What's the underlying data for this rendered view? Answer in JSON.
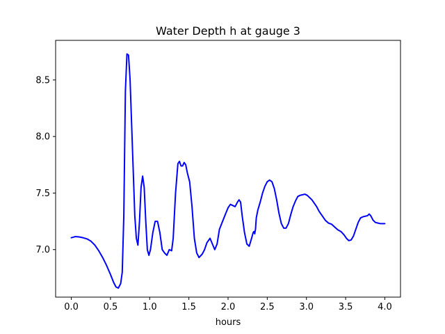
{
  "chart_data": {
    "type": "line",
    "title": "Water Depth h at gauge 3",
    "xlabel": "hours",
    "ylabel": "",
    "xlim": [
      -0.2,
      4.2
    ],
    "ylim": [
      6.58,
      8.85
    ],
    "x_ticks": [
      0.0,
      0.5,
      1.0,
      1.5,
      2.0,
      2.5,
      3.0,
      3.5,
      4.0
    ],
    "x_tick_labels": [
      "0.0",
      "0.5",
      "1.0",
      "1.5",
      "2.0",
      "2.5",
      "3.0",
      "3.5",
      "4.0"
    ],
    "y_ticks": [
      7.0,
      7.5,
      8.0,
      8.5
    ],
    "y_tick_labels": [
      "7.0",
      "7.5",
      "8.0",
      "8.5"
    ],
    "grid": false,
    "series": [
      {
        "color": "#0000ff",
        "points": [
          [
            0.0,
            7.105
          ],
          [
            0.05,
            7.115
          ],
          [
            0.1,
            7.112
          ],
          [
            0.15,
            7.105
          ],
          [
            0.2,
            7.095
          ],
          [
            0.25,
            7.075
          ],
          [
            0.3,
            7.04
          ],
          [
            0.35,
            6.99
          ],
          [
            0.4,
            6.93
          ],
          [
            0.45,
            6.86
          ],
          [
            0.5,
            6.78
          ],
          [
            0.54,
            6.71
          ],
          [
            0.57,
            6.67
          ],
          [
            0.6,
            6.66
          ],
          [
            0.63,
            6.7
          ],
          [
            0.65,
            6.8
          ],
          [
            0.67,
            7.3
          ],
          [
            0.69,
            8.4
          ],
          [
            0.71,
            8.73
          ],
          [
            0.73,
            8.72
          ],
          [
            0.75,
            8.5
          ],
          [
            0.77,
            8.1
          ],
          [
            0.79,
            7.7
          ],
          [
            0.81,
            7.3
          ],
          [
            0.83,
            7.1
          ],
          [
            0.85,
            7.04
          ],
          [
            0.87,
            7.25
          ],
          [
            0.89,
            7.55
          ],
          [
            0.91,
            7.65
          ],
          [
            0.93,
            7.55
          ],
          [
            0.95,
            7.25
          ],
          [
            0.97,
            7.0
          ],
          [
            0.99,
            6.95
          ],
          [
            1.01,
            7.0
          ],
          [
            1.04,
            7.15
          ],
          [
            1.07,
            7.25
          ],
          [
            1.1,
            7.25
          ],
          [
            1.13,
            7.15
          ],
          [
            1.16,
            7.0
          ],
          [
            1.19,
            6.97
          ],
          [
            1.22,
            6.95
          ],
          [
            1.25,
            7.0
          ],
          [
            1.28,
            6.99
          ],
          [
            1.3,
            7.1
          ],
          [
            1.33,
            7.5
          ],
          [
            1.36,
            7.76
          ],
          [
            1.38,
            7.78
          ],
          [
            1.4,
            7.74
          ],
          [
            1.42,
            7.74
          ],
          [
            1.44,
            7.77
          ],
          [
            1.46,
            7.75
          ],
          [
            1.48,
            7.68
          ],
          [
            1.51,
            7.6
          ],
          [
            1.54,
            7.38
          ],
          [
            1.57,
            7.1
          ],
          [
            1.6,
            6.97
          ],
          [
            1.63,
            6.93
          ],
          [
            1.67,
            6.96
          ],
          [
            1.7,
            7.0
          ],
          [
            1.73,
            7.06
          ],
          [
            1.77,
            7.1
          ],
          [
            1.8,
            7.05
          ],
          [
            1.83,
            7.0
          ],
          [
            1.86,
            7.05
          ],
          [
            1.89,
            7.18
          ],
          [
            1.93,
            7.25
          ],
          [
            1.97,
            7.32
          ],
          [
            2.0,
            7.37
          ],
          [
            2.03,
            7.4
          ],
          [
            2.06,
            7.39
          ],
          [
            2.09,
            7.38
          ],
          [
            2.12,
            7.42
          ],
          [
            2.14,
            7.44
          ],
          [
            2.16,
            7.42
          ],
          [
            2.18,
            7.3
          ],
          [
            2.21,
            7.15
          ],
          [
            2.24,
            7.05
          ],
          [
            2.27,
            7.03
          ],
          [
            2.3,
            7.1
          ],
          [
            2.32,
            7.15
          ],
          [
            2.33,
            7.16
          ],
          [
            2.34,
            7.14
          ],
          [
            2.35,
            7.18
          ],
          [
            2.36,
            7.28
          ],
          [
            2.38,
            7.35
          ],
          [
            2.41,
            7.42
          ],
          [
            2.44,
            7.5
          ],
          [
            2.47,
            7.56
          ],
          [
            2.5,
            7.6
          ],
          [
            2.53,
            7.615
          ],
          [
            2.56,
            7.6
          ],
          [
            2.59,
            7.54
          ],
          [
            2.62,
            7.44
          ],
          [
            2.65,
            7.32
          ],
          [
            2.68,
            7.23
          ],
          [
            2.71,
            7.19
          ],
          [
            2.74,
            7.19
          ],
          [
            2.77,
            7.23
          ],
          [
            2.8,
            7.31
          ],
          [
            2.83,
            7.38
          ],
          [
            2.86,
            7.43
          ],
          [
            2.89,
            7.47
          ],
          [
            2.92,
            7.48
          ],
          [
            2.95,
            7.485
          ],
          [
            2.98,
            7.49
          ],
          [
            3.01,
            7.48
          ],
          [
            3.04,
            7.46
          ],
          [
            3.07,
            7.44
          ],
          [
            3.1,
            7.41
          ],
          [
            3.13,
            7.38
          ],
          [
            3.16,
            7.34
          ],
          [
            3.2,
            7.3
          ],
          [
            3.24,
            7.26
          ],
          [
            3.28,
            7.235
          ],
          [
            3.32,
            7.225
          ],
          [
            3.36,
            7.2
          ],
          [
            3.4,
            7.175
          ],
          [
            3.44,
            7.16
          ],
          [
            3.48,
            7.13
          ],
          [
            3.51,
            7.1
          ],
          [
            3.54,
            7.08
          ],
          [
            3.57,
            7.085
          ],
          [
            3.6,
            7.12
          ],
          [
            3.63,
            7.18
          ],
          [
            3.66,
            7.24
          ],
          [
            3.69,
            7.28
          ],
          [
            3.72,
            7.29
          ],
          [
            3.75,
            7.295
          ],
          [
            3.78,
            7.3
          ],
          [
            3.8,
            7.315
          ],
          [
            3.82,
            7.3
          ],
          [
            3.85,
            7.26
          ],
          [
            3.88,
            7.24
          ],
          [
            3.91,
            7.235
          ],
          [
            3.94,
            7.23
          ],
          [
            3.97,
            7.23
          ],
          [
            4.0,
            7.23
          ]
        ]
      }
    ]
  }
}
